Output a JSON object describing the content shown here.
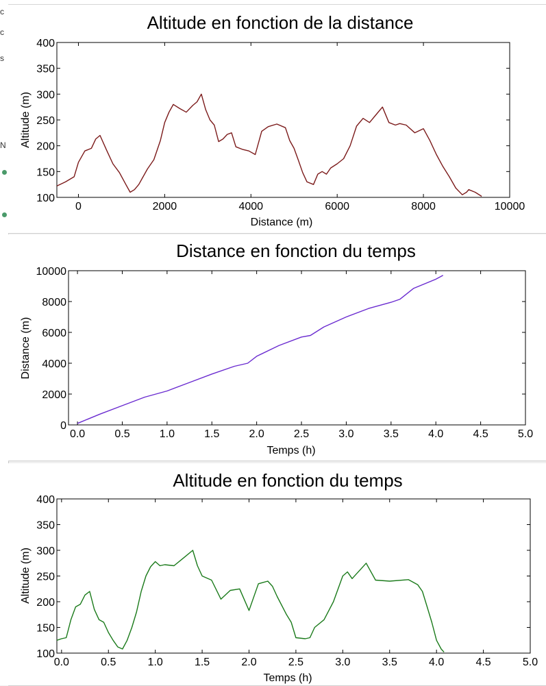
{
  "chart_data": [
    {
      "type": "line",
      "title": "Altitude en fonction de la distance",
      "xlabel": "Distance (m)",
      "ylabel": "Altitude (m)",
      "xlim": [
        -500,
        10000
      ],
      "ylim": [
        100,
        400
      ],
      "xticks": [
        0,
        2000,
        4000,
        6000,
        8000,
        10000
      ],
      "yticks": [
        100,
        150,
        200,
        250,
        300,
        350,
        400
      ],
      "xtick_labels": [
        "0",
        "2000",
        "4000",
        "6000",
        "8000",
        "10000"
      ],
      "ytick_labels": [
        "100",
        "150",
        "200",
        "250",
        "300",
        "350",
        "400"
      ],
      "color": "#7b1a1a",
      "series": [
        {
          "x": [
            -500,
            -300,
            -100,
            0,
            150,
            300,
            400,
            500,
            650,
            800,
            950,
            1100,
            1200,
            1300,
            1400,
            1500,
            1600,
            1750,
            1900,
            2000,
            2100,
            2200,
            2350,
            2500,
            2650,
            2750,
            2850,
            2950,
            3050,
            3150,
            3250,
            3350,
            3450,
            3550,
            3650,
            3800,
            3950,
            4100,
            4250,
            4400,
            4600,
            4800,
            4900,
            5000,
            5100,
            5200,
            5300,
            5450,
            5550,
            5650,
            5750,
            5850,
            6000,
            6150,
            6300,
            6450,
            6600,
            6750,
            6900,
            7050,
            7200,
            7350,
            7450,
            7600,
            7800,
            8000,
            8150,
            8300,
            8450,
            8600,
            8750,
            8900,
            9000,
            9050,
            9200,
            9350
          ],
          "y": [
            122,
            130,
            140,
            168,
            190,
            195,
            213,
            220,
            192,
            165,
            148,
            125,
            110,
            115,
            125,
            140,
            155,
            173,
            210,
            245,
            265,
            280,
            272,
            265,
            278,
            285,
            300,
            270,
            250,
            240,
            208,
            213,
            222,
            225,
            198,
            193,
            190,
            183,
            228,
            237,
            242,
            235,
            210,
            195,
            172,
            148,
            130,
            125,
            145,
            150,
            145,
            157,
            165,
            175,
            200,
            238,
            253,
            245,
            260,
            275,
            245,
            240,
            243,
            240,
            225,
            233,
            210,
            183,
            160,
            140,
            118,
            105,
            110,
            115,
            110,
            102
          ]
        }
      ]
    },
    {
      "type": "line",
      "title": "Distance en fonction du temps",
      "xlabel": "Temps (h)",
      "ylabel": "Distance (m)",
      "xlim": [
        -0.1,
        5.0
      ],
      "ylim": [
        0,
        10000
      ],
      "xticks": [
        0.0,
        0.5,
        1.0,
        1.5,
        2.0,
        2.5,
        3.0,
        3.5,
        4.0,
        4.5,
        5.0
      ],
      "yticks": [
        0,
        2000,
        4000,
        6000,
        8000,
        10000
      ],
      "xtick_labels": [
        "0.0",
        "0.5",
        "1.0",
        "1.5",
        "2.0",
        "2.5",
        "3.0",
        "3.5",
        "4.0",
        "4.5",
        "5.0"
      ],
      "ytick_labels": [
        "0",
        "2000",
        "4000",
        "6000",
        "8000",
        "10000"
      ],
      "color": "#6a2bd0",
      "series": [
        {
          "x": [
            0.0,
            0.25,
            0.5,
            0.75,
            1.0,
            1.25,
            1.5,
            1.75,
            1.9,
            2.0,
            2.25,
            2.5,
            2.6,
            2.75,
            3.0,
            3.25,
            3.5,
            3.6,
            3.75,
            4.0,
            4.08
          ],
          "y": [
            100,
            700,
            1250,
            1800,
            2200,
            2750,
            3300,
            3800,
            4000,
            4450,
            5150,
            5700,
            5800,
            6350,
            7000,
            7550,
            7950,
            8150,
            8850,
            9450,
            9700
          ]
        }
      ]
    },
    {
      "type": "line",
      "title": "Altitude en fonction du temps",
      "xlabel": "Temps (h)",
      "ylabel": "Altitude (m)",
      "xlim": [
        -0.05,
        5.0
      ],
      "ylim": [
        100,
        400
      ],
      "xticks": [
        0.0,
        0.5,
        1.0,
        1.5,
        2.0,
        2.5,
        3.0,
        3.5,
        4.0,
        4.5,
        5.0
      ],
      "yticks": [
        100,
        150,
        200,
        250,
        300,
        350,
        400
      ],
      "xtick_labels": [
        "0.0",
        "0.5",
        "1.0",
        "1.5",
        "2.0",
        "2.5",
        "3.0",
        "3.5",
        "4.0",
        "4.5",
        "5.0"
      ],
      "ytick_labels": [
        "100",
        "150",
        "200",
        "250",
        "300",
        "350",
        "400"
      ],
      "color": "#1a7a1a",
      "series": [
        {
          "x": [
            -0.05,
            0.0,
            0.05,
            0.1,
            0.15,
            0.2,
            0.25,
            0.3,
            0.35,
            0.4,
            0.45,
            0.5,
            0.55,
            0.6,
            0.65,
            0.7,
            0.75,
            0.8,
            0.85,
            0.9,
            0.95,
            1.0,
            1.05,
            1.1,
            1.2,
            1.3,
            1.4,
            1.45,
            1.5,
            1.6,
            1.7,
            1.8,
            1.9,
            2.0,
            2.1,
            2.2,
            2.25,
            2.3,
            2.4,
            2.45,
            2.5,
            2.6,
            2.65,
            2.7,
            2.8,
            2.9,
            3.0,
            3.05,
            3.1,
            3.2,
            3.25,
            3.35,
            3.5,
            3.7,
            3.8,
            3.85,
            3.9,
            3.95,
            4.0,
            4.05,
            4.08
          ],
          "y": [
            125,
            128,
            130,
            165,
            190,
            195,
            213,
            220,
            185,
            165,
            160,
            140,
            125,
            112,
            108,
            125,
            150,
            180,
            220,
            250,
            268,
            278,
            270,
            272,
            270,
            285,
            300,
            270,
            250,
            242,
            205,
            222,
            225,
            183,
            235,
            240,
            230,
            210,
            175,
            160,
            130,
            128,
            130,
            150,
            165,
            200,
            250,
            258,
            245,
            265,
            275,
            242,
            240,
            243,
            233,
            220,
            190,
            160,
            125,
            108,
            102
          ]
        }
      ]
    }
  ]
}
